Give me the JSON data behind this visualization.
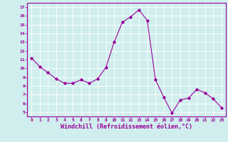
{
  "x": [
    0,
    1,
    2,
    3,
    4,
    5,
    6,
    7,
    8,
    9,
    10,
    11,
    12,
    13,
    14,
    15,
    16,
    17,
    18,
    19,
    20,
    21,
    22,
    23
  ],
  "y": [
    11.2,
    10.2,
    9.5,
    8.8,
    8.3,
    8.3,
    8.7,
    8.3,
    8.8,
    10.1,
    13.0,
    15.3,
    15.9,
    16.7,
    15.5,
    8.7,
    6.7,
    4.9,
    6.4,
    6.6,
    7.6,
    7.2,
    6.5,
    5.5
  ],
  "line_color": "#990099",
  "marker": "D",
  "markersize": 1.8,
  "linewidth": 0.8,
  "xlabel": "Windchill (Refroidissement éolien,°C)",
  "xlabel_fontsize": 6.0,
  "bg_color": "#d0eeee",
  "grid_color": "#ffffff",
  "tick_color": "#990099",
  "label_color": "#990099",
  "xlim": [
    -0.5,
    23.5
  ],
  "ylim": [
    4.5,
    17.5
  ],
  "yticks": [
    5,
    6,
    7,
    8,
    9,
    10,
    11,
    12,
    13,
    14,
    15,
    16,
    17
  ],
  "xticks": [
    0,
    1,
    2,
    3,
    4,
    5,
    6,
    7,
    8,
    9,
    10,
    11,
    12,
    13,
    14,
    15,
    16,
    17,
    18,
    19,
    20,
    21,
    22,
    23
  ],
  "tick_labelsize": 4.5,
  "spine_color": "#990099"
}
